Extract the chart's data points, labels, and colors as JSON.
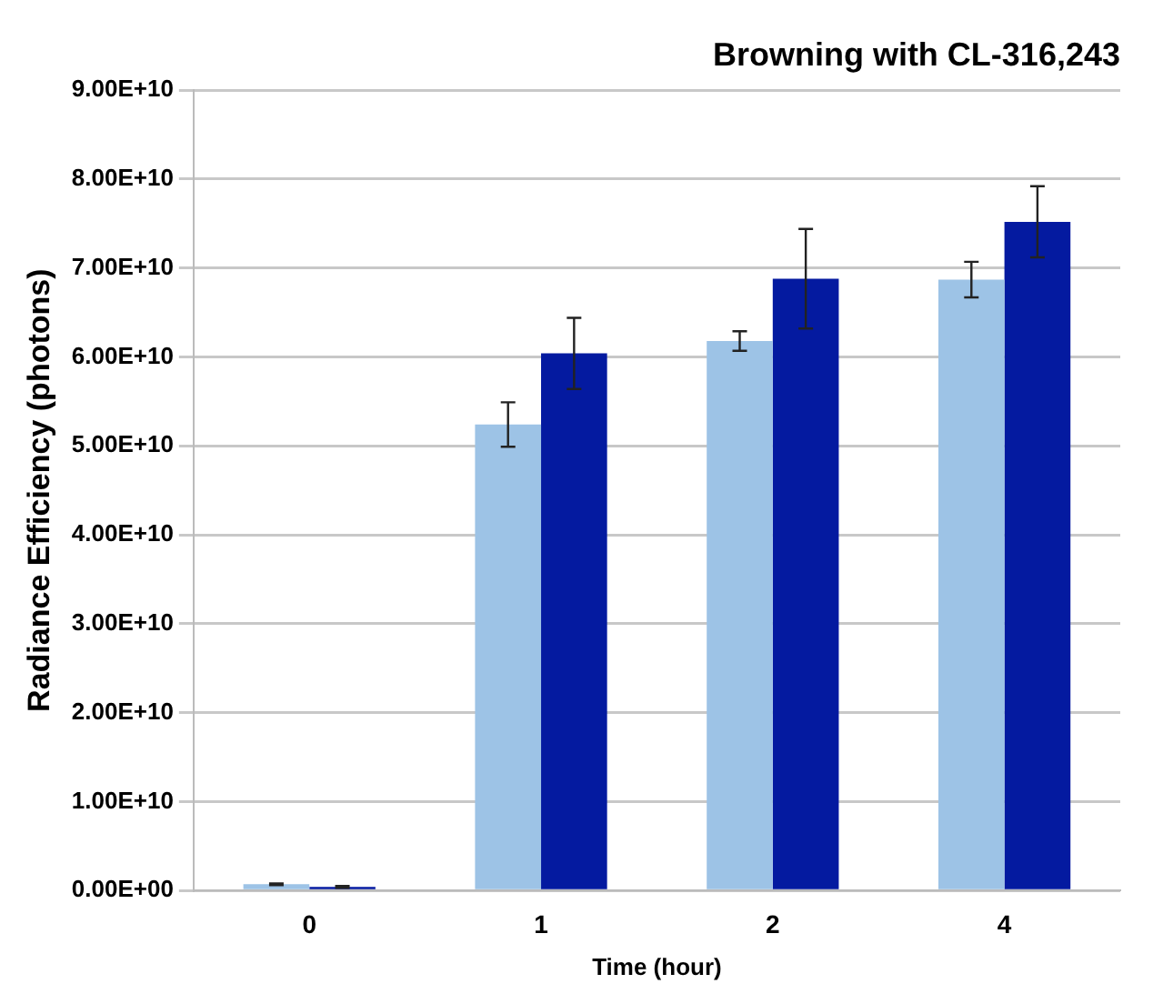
{
  "chart_data": {
    "type": "bar",
    "title": "Browning with CL-316,243",
    "xlabel": "Time (hour)",
    "ylabel": "Radiance Efficiency (photons)",
    "categories": [
      "0",
      "1",
      "2",
      "4"
    ],
    "series": [
      {
        "color": "#9dc3e6",
        "values": [
          700000000.0,
          52400000000.0,
          61800000000.0,
          68700000000.0
        ],
        "errors": [
          100000000.0,
          2500000000.0,
          1100000000.0,
          2000000000.0
        ]
      },
      {
        "color": "#041aa0",
        "values": [
          400000000.0,
          60400000000.0,
          68800000000.0,
          75200000000.0
        ],
        "errors": [
          100000000.0,
          4000000000.0,
          5600000000.0,
          4000000000.0
        ]
      }
    ],
    "ylim": [
      0,
      90000000000.0
    ],
    "yticks": [
      {
        "value": 0,
        "label": "0.00E+00"
      },
      {
        "value": 10000000000.0,
        "label": "1.00E+10"
      },
      {
        "value": 20000000000.0,
        "label": "2.00E+10"
      },
      {
        "value": 30000000000.0,
        "label": "3.00E+10"
      },
      {
        "value": 40000000000.0,
        "label": "4.00E+10"
      },
      {
        "value": 50000000000.0,
        "label": "5.00E+10"
      },
      {
        "value": 60000000000.0,
        "label": "6.00E+10"
      },
      {
        "value": 70000000000.0,
        "label": "7.00E+10"
      },
      {
        "value": 80000000000.0,
        "label": "8.00E+10"
      },
      {
        "value": 90000000000.0,
        "label": "9.00E+10"
      }
    ],
    "grid": "y",
    "legend": false
  }
}
